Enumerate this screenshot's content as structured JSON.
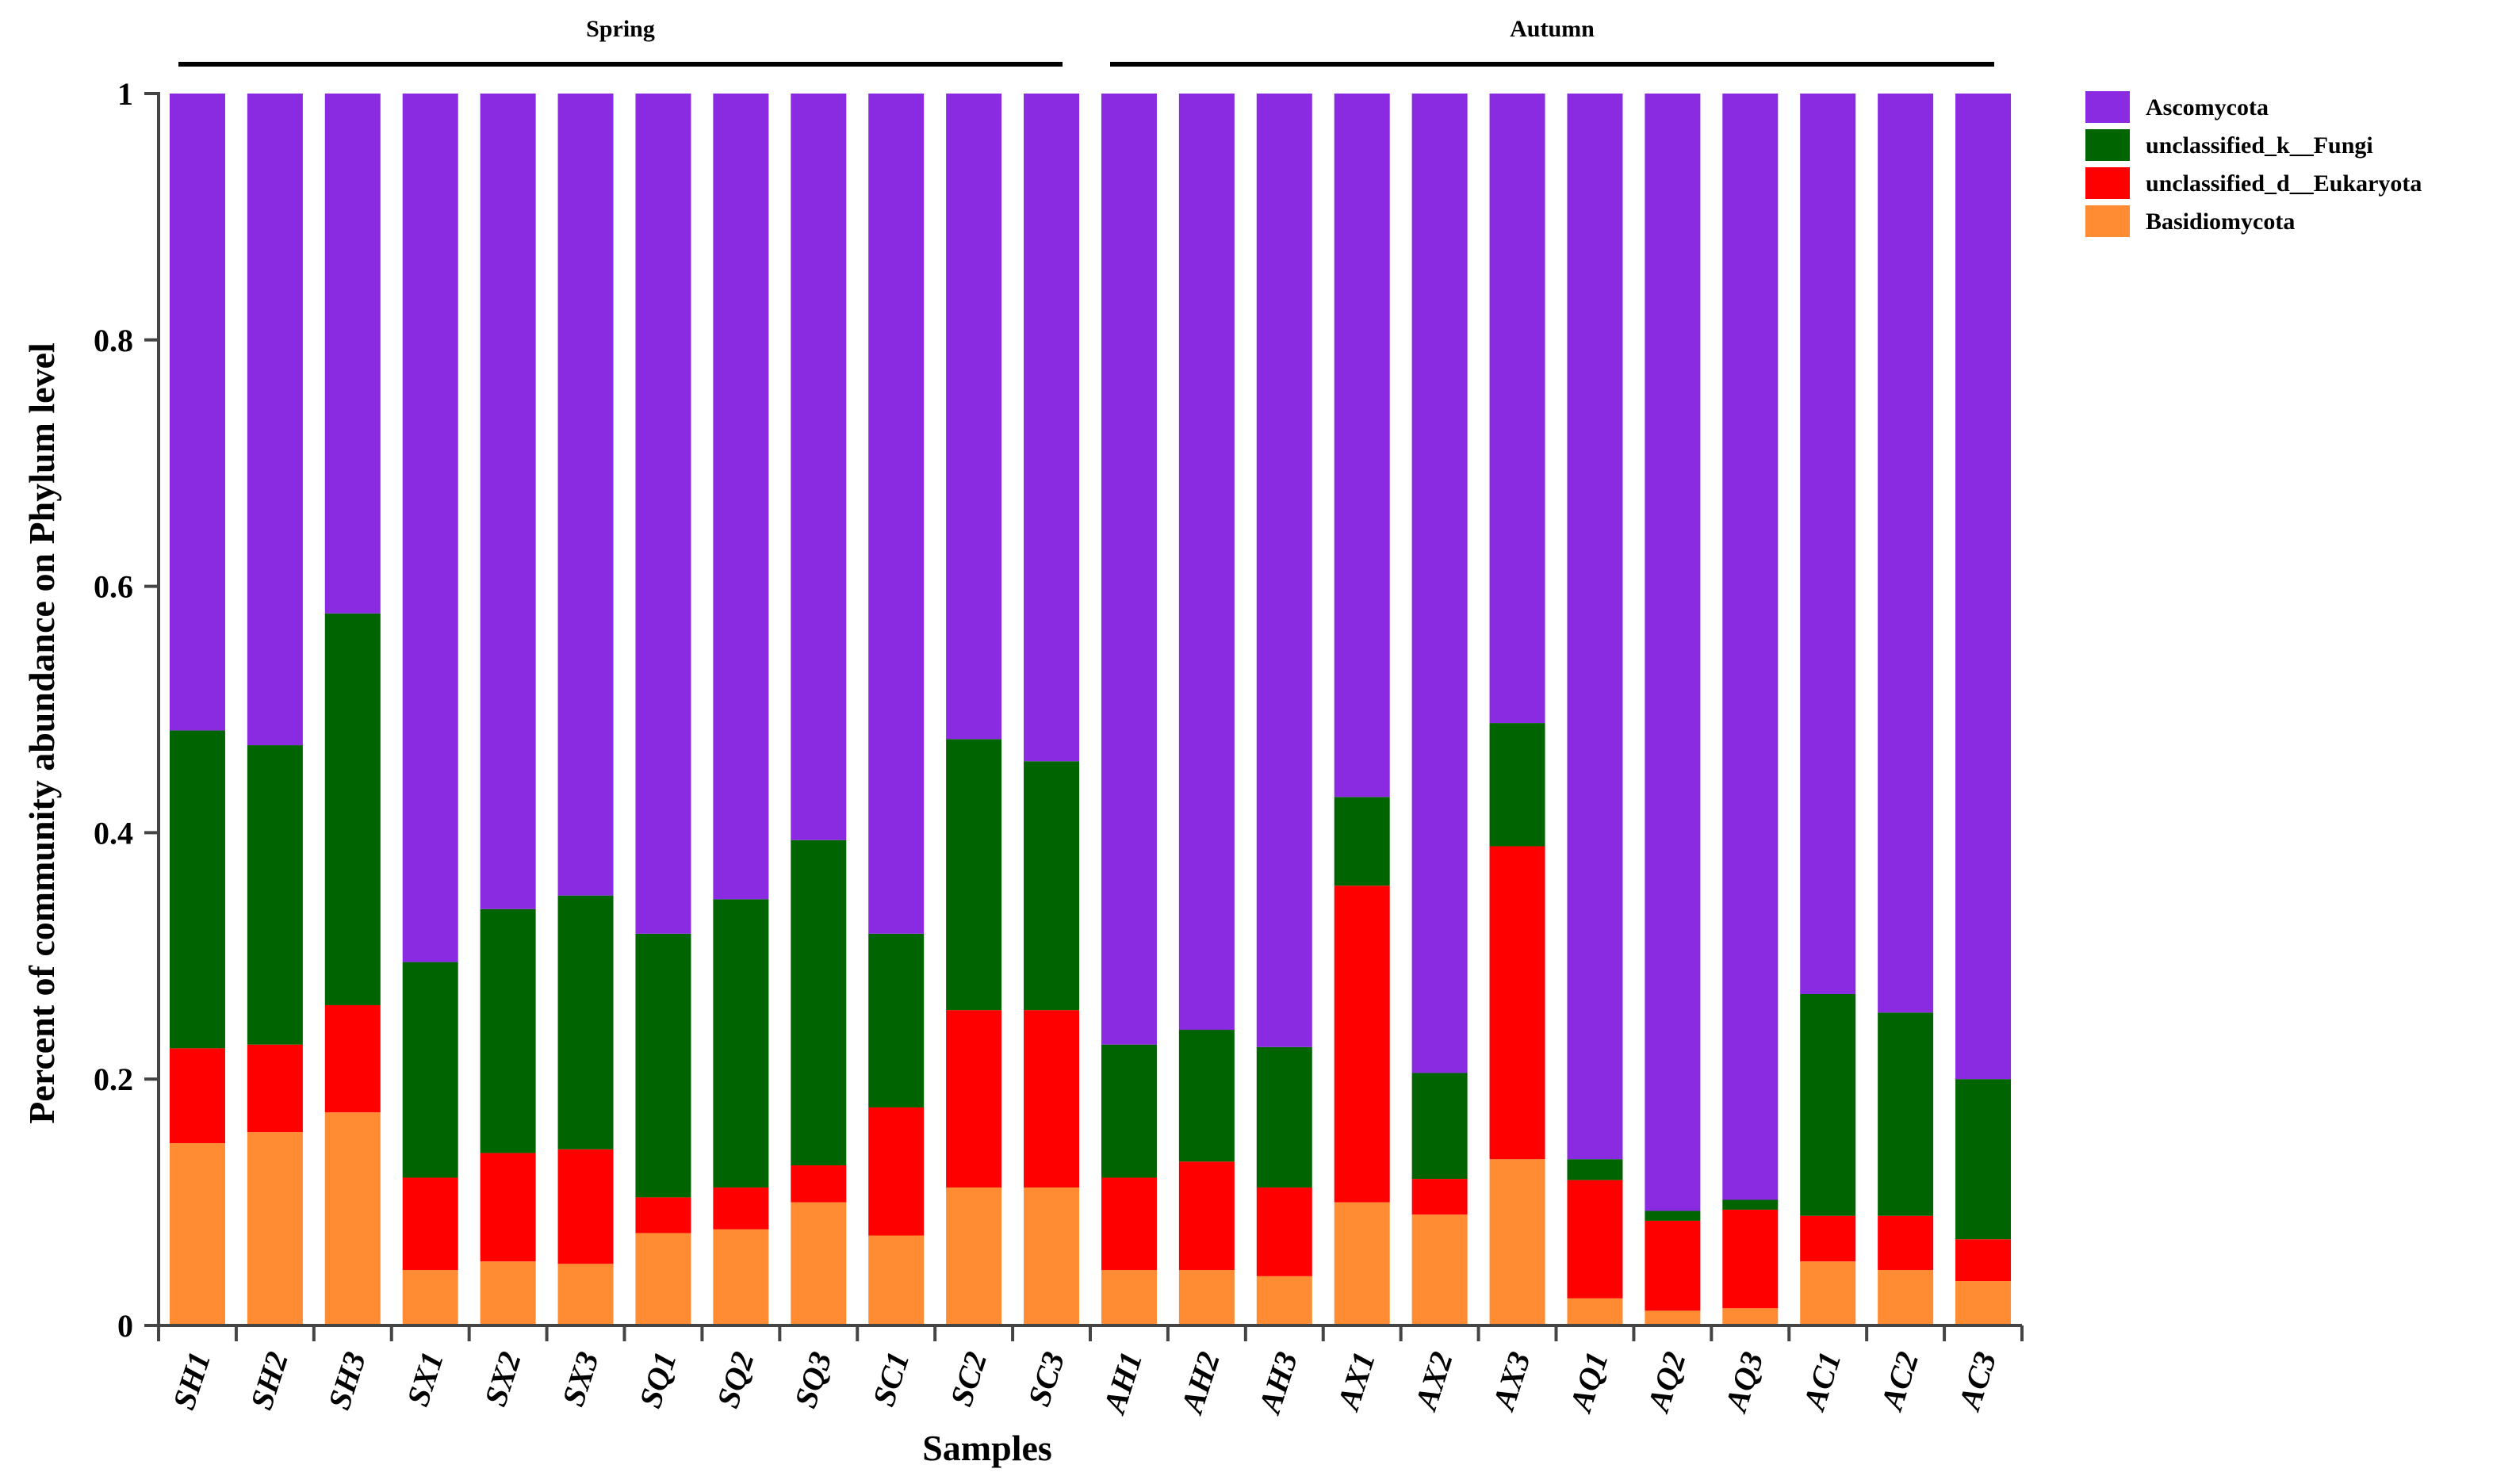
{
  "chart_data": {
    "type": "bar",
    "stacked": true,
    "xlabel": "Samples",
    "ylabel": "Percent of community abundance on Phylum level",
    "ylim": [
      0,
      1
    ],
    "yticks": [
      0,
      0.2,
      0.4,
      0.6,
      0.8,
      1
    ],
    "ytick_labels": [
      "0",
      "0.2",
      "0.4",
      "0.6",
      "0.8",
      "1"
    ],
    "categories": [
      "SH1",
      "SH2",
      "SH3",
      "SX1",
      "SX2",
      "SX3",
      "SQ1",
      "SQ2",
      "SQ3",
      "SC1",
      "SC2",
      "SC3",
      "AH1",
      "AH2",
      "AH3",
      "AX1",
      "AX2",
      "AX3",
      "AQ1",
      "AQ2",
      "AQ3",
      "AC1",
      "AC2",
      "AC3"
    ],
    "groups": [
      {
        "label": "Spring",
        "start": 0,
        "end": 11
      },
      {
        "label": "Autumn",
        "start": 12,
        "end": 23
      }
    ],
    "legend_position": "top-right",
    "series": [
      {
        "name": "Basidiomycota",
        "color": "#FF8C33",
        "values": [
          0.148,
          0.157,
          0.173,
          0.045,
          0.052,
          0.05,
          0.075,
          0.078,
          0.1,
          0.073,
          0.112,
          0.112,
          0.045,
          0.045,
          0.04,
          0.1,
          0.09,
          0.135,
          0.022,
          0.012,
          0.014,
          0.052,
          0.045,
          0.036
        ]
      },
      {
        "name": "unclassified_d__Eukaryota",
        "color": "#FF0000",
        "values": [
          0.077,
          0.071,
          0.087,
          0.075,
          0.088,
          0.093,
          0.029,
          0.034,
          0.03,
          0.104,
          0.144,
          0.144,
          0.075,
          0.088,
          0.072,
          0.257,
          0.029,
          0.254,
          0.096,
          0.073,
          0.08,
          0.037,
          0.044,
          0.034
        ]
      },
      {
        "name": "unclassified_k__Fungi",
        "color": "#006400",
        "values": [
          0.258,
          0.243,
          0.318,
          0.175,
          0.198,
          0.206,
          0.214,
          0.234,
          0.264,
          0.141,
          0.22,
          0.202,
          0.108,
          0.107,
          0.114,
          0.072,
          0.086,
          0.1,
          0.017,
          0.008,
          0.008,
          0.18,
          0.165,
          0.13
        ]
      },
      {
        "name": "Ascomycota",
        "color": "#8A2BE2",
        "values": [
          0.517,
          0.529,
          0.422,
          0.705,
          0.662,
          0.651,
          0.682,
          0.654,
          0.606,
          0.682,
          0.524,
          0.542,
          0.772,
          0.76,
          0.774,
          0.571,
          0.795,
          0.511,
          0.865,
          0.907,
          0.898,
          0.731,
          0.746,
          0.8
        ]
      }
    ],
    "legend_order": [
      "Ascomycota",
      "unclassified_k__Fungi",
      "unclassified_d__Eukaryota",
      "Basidiomycota"
    ]
  }
}
